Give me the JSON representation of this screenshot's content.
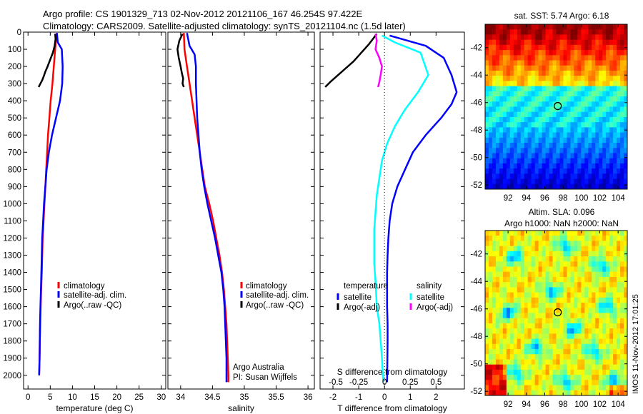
{
  "header": {
    "title_line1": "Argo profile: CS 1901329_713 02-Nov-2012 20121106_167 46.254S 97.422E",
    "title_line2": "Climatology: CARS2009. Satellite-adjusted climatology: synTS_20121104.nc (1.5d later)"
  },
  "colors": {
    "climatology": "#ff0000",
    "satellite": "#0000ff",
    "argo": "#000000",
    "sat_salinity": "#00ffff",
    "argo_salinity": "#ff00ff"
  },
  "chart_data": [
    {
      "type": "line",
      "xlabel": "temperature (deg C)",
      "ylabel": "",
      "xlim": [
        -1,
        31
      ],
      "ylim": [
        2080,
        0
      ],
      "yreversed": true,
      "xticks": [
        "0",
        "5",
        "10",
        "15",
        "20",
        "25",
        "30"
      ],
      "yticks": [
        "0",
        "100",
        "200",
        "300",
        "400",
        "500",
        "600",
        "700",
        "800",
        "900",
        "1000",
        "1100",
        "1200",
        "1300",
        "1400",
        "1500",
        "1600",
        "1700",
        "1800",
        "1900",
        "2000"
      ],
      "legend_entries": [
        "climatology",
        "satellite-adj. clim.",
        "Argo(..raw -QC)"
      ],
      "series": [
        {
          "name": "climatology",
          "color": "#ff0000",
          "x": [
            6.5,
            6.3,
            6.1,
            5.8,
            5.5,
            5.1,
            4.8,
            4.5,
            4.3,
            4.1,
            3.9,
            3.7,
            3.5,
            3.3,
            3.2,
            3.1,
            2.95,
            2.85,
            2.75,
            2.65,
            2.6,
            2.5
          ],
          "y": [
            5,
            40,
            100,
            200,
            300,
            400,
            500,
            600,
            700,
            800,
            900,
            1000,
            1100,
            1200,
            1300,
            1400,
            1500,
            1600,
            1700,
            1800,
            1900,
            2000
          ]
        },
        {
          "name": "satellite-adj. clim.",
          "color": "#0000ff",
          "x": [
            6.5,
            6.7,
            7.6,
            7.8,
            7.7,
            7.2,
            6.3,
            5.4,
            4.7,
            4.2,
            3.9,
            3.6,
            3.4,
            3.2,
            3.1,
            3.0,
            2.9,
            2.8,
            2.7,
            2.65,
            2.6,
            2.5
          ],
          "y": [
            5,
            60,
            100,
            200,
            300,
            400,
            500,
            600,
            700,
            800,
            900,
            1000,
            1100,
            1200,
            1300,
            1400,
            1500,
            1600,
            1700,
            1800,
            1900,
            2000
          ]
        },
        {
          "name": "Argo(..raw -QC)",
          "color": "#000000",
          "x": [
            6.1,
            6.2,
            6.0,
            5.6,
            5.0,
            4.4,
            3.9,
            3.5,
            3.2,
            2.8,
            2.4
          ],
          "y": [
            10,
            40,
            80,
            120,
            160,
            200,
            230,
            260,
            280,
            300,
            320
          ]
        }
      ]
    },
    {
      "type": "line",
      "xlabel": "salinity",
      "ylabel": "",
      "xlim": [
        33.8,
        36.1
      ],
      "ylim": [
        2080,
        0
      ],
      "yreversed": true,
      "xticks": [
        "34",
        "34.5",
        "35",
        "35.5",
        "36"
      ],
      "legend_entries": [
        "climatology",
        "satellite-adj. clim.",
        "Argo(..raw -QC)"
      ],
      "annotations": [
        "Argo Australia",
        "PI: Susan Wijffels"
      ],
      "series": [
        {
          "name": "climatology",
          "color": "#ff0000",
          "x": [
            34.05,
            34.06,
            34.1,
            34.14,
            34.18,
            34.22,
            34.26,
            34.3,
            34.34,
            34.38,
            34.45,
            34.51,
            34.56,
            34.61,
            34.65,
            34.68,
            34.7,
            34.72,
            34.73,
            34.74,
            34.75,
            34.75
          ],
          "y": [
            5,
            100,
            200,
            300,
            400,
            500,
            600,
            700,
            800,
            900,
            1000,
            1100,
            1200,
            1300,
            1400,
            1500,
            1600,
            1700,
            1800,
            1900,
            2000,
            2040
          ]
        },
        {
          "name": "satellite-adj. clim.",
          "color": "#0000ff",
          "x": [
            34.1,
            34.14,
            34.22,
            34.24,
            34.24,
            34.25,
            34.26,
            34.28,
            34.3,
            34.33,
            34.37,
            34.42,
            34.48,
            34.54,
            34.59,
            34.64,
            34.67,
            34.69,
            34.7,
            34.71,
            34.72,
            34.72
          ],
          "y": [
            5,
            80,
            130,
            200,
            300,
            400,
            500,
            600,
            700,
            800,
            900,
            1000,
            1100,
            1200,
            1300,
            1400,
            1500,
            1600,
            1700,
            1800,
            1900,
            2040
          ]
        },
        {
          "name": "Argo(..raw -QC)",
          "color": "#000000",
          "x": [
            34.03,
            33.98,
            33.95,
            33.97,
            34.0,
            34.02,
            34.04,
            34.03,
            34.05
          ],
          "y": [
            10,
            50,
            100,
            150,
            200,
            240,
            270,
            300,
            320
          ]
        }
      ]
    },
    {
      "type": "line",
      "xlabel": "T difference from climatology",
      "title": "S difference from climatology",
      "ylabel": "",
      "xlim": [
        -2.5,
        3.1
      ],
      "ylim": [
        2080,
        0
      ],
      "yreversed": true,
      "xticks": [
        "-2",
        "-1",
        "0",
        "1",
        "2"
      ],
      "top_xticks": [
        "-0.5",
        "-0.25",
        "0",
        "0.25",
        "0.5"
      ],
      "legend_headers": [
        "temperature",
        "salinity"
      ],
      "legend_entries": [
        "satellite",
        "Argo(-adj)",
        "satellite",
        "Argo(-adj)"
      ],
      "series": [
        {
          "name": "satellite",
          "color": "#0000ff",
          "x": [
            0.2,
            1.6,
            2.3,
            2.6,
            2.8,
            2.6,
            2.2,
            1.6,
            1.1,
            0.8,
            0.5,
            0.3,
            0.2,
            0.15,
            0.12,
            0.1,
            0.1,
            0.1,
            0.12,
            0.12,
            0.1
          ],
          "y": [
            20,
            80,
            150,
            250,
            350,
            420,
            500,
            600,
            700,
            800,
            900,
            1000,
            1100,
            1200,
            1300,
            1400,
            1500,
            1600,
            1700,
            1800,
            2040
          ]
        },
        {
          "name": "Argo(-adj)",
          "color": "#000000",
          "x": [
            -0.3,
            -0.6,
            -0.9,
            -1.2,
            -1.5,
            -1.8,
            -2.1,
            -2.3
          ],
          "y": [
            10,
            70,
            120,
            170,
            210,
            250,
            290,
            320
          ]
        },
        {
          "name": "satellite",
          "color": "#00ffff",
          "x": [
            -0.1,
            0.4,
            1.4,
            1.7,
            1.3,
            0.8,
            0.4,
            0.1,
            -0.1,
            -0.2,
            -0.3,
            -0.35,
            -0.4,
            -0.4,
            -0.4,
            -0.35,
            -0.3,
            -0.2,
            -0.15,
            -0.1,
            -0.05
          ],
          "y": [
            20,
            60,
            120,
            250,
            350,
            450,
            550,
            650,
            750,
            850,
            950,
            1050,
            1150,
            1250,
            1350,
            1450,
            1600,
            1700,
            1800,
            1900,
            2040
          ]
        },
        {
          "name": "Argo(-adj)",
          "color": "#ff00ff",
          "x": [
            -0.35,
            -0.3,
            -0.35,
            -0.2,
            -0.1,
            -0.15,
            -0.2,
            -0.25
          ],
          "y": [
            10,
            50,
            100,
            150,
            200,
            250,
            290,
            320
          ]
        }
      ]
    },
    {
      "type": "heatmap",
      "title": "sat. SST: 5.74 Argo: 6.18",
      "xlim": [
        89.5,
        105
      ],
      "ylim": [
        -52.3,
        -40.3
      ],
      "xticks": [
        "92",
        "94",
        "96",
        "98",
        "100",
        "102",
        "104"
      ],
      "yticks": [
        "-42",
        "-44",
        "-46",
        "-48",
        "-50",
        "-52"
      ],
      "marker": {
        "x": 97.42,
        "y": -46.25
      }
    },
    {
      "type": "heatmap",
      "title": "Altim. SLA: 0.096",
      "subtitle": "Argo h1000: NaN h2000: NaN",
      "xlim": [
        89.5,
        105
      ],
      "ylim": [
        -52.3,
        -40.3
      ],
      "xticks": [
        "92",
        "94",
        "96",
        "98",
        "100",
        "102",
        "104"
      ],
      "yticks": [
        "-42",
        "-44",
        "-46",
        "-48",
        "-50",
        "-52"
      ],
      "marker": {
        "x": 97.42,
        "y": -46.25
      }
    }
  ],
  "footer": {
    "timestamp": "IMOS 11-Nov-2012 17:01:25"
  }
}
